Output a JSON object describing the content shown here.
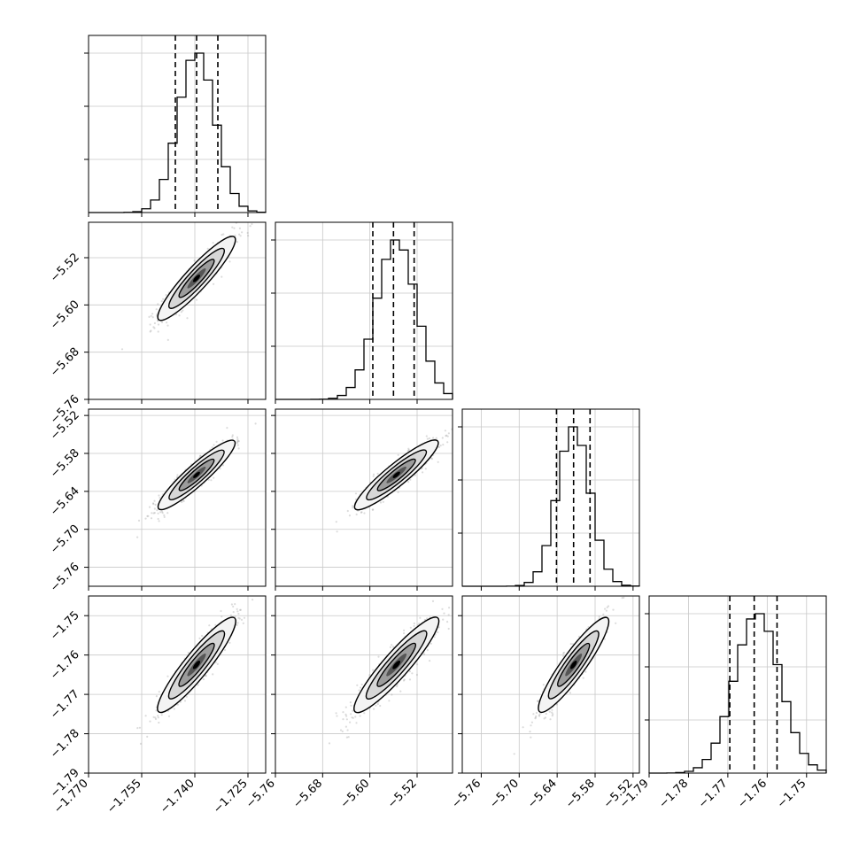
{
  "chart_data": {
    "type": "corner",
    "params": [
      {
        "lim": [
          -1.77,
          -1.72
        ],
        "ticks": [
          "-1.770",
          "-1.755",
          "-1.740",
          "-1.725"
        ],
        "tickValues": [
          -1.77,
          -1.755,
          -1.74,
          -1.725
        ],
        "mean": -1.7395,
        "sd": 0.0052,
        "quantiles": [
          -1.7455,
          -1.7395,
          -1.7335
        ]
      },
      {
        "lim": [
          -5.76,
          -5.46
        ],
        "ticks": [
          "-5.76",
          "-5.68",
          "-5.60",
          "-5.52"
        ],
        "tickValues": [
          -5.76,
          -5.68,
          -5.6,
          -5.52
        ],
        "mean": -5.555,
        "sd": 0.034,
        "quantiles": [
          -5.595,
          -5.56,
          -5.525
        ]
      },
      {
        "lim": [
          -5.79,
          -5.51
        ],
        "ticks": [
          "-5.76",
          "-5.70",
          "-5.64",
          "-5.58",
          "-5.52"
        ],
        "tickValues": [
          -5.76,
          -5.7,
          -5.64,
          -5.58,
          -5.52
        ],
        "mean": -5.614,
        "sd": 0.026,
        "quantiles": [
          -5.641,
          -5.614,
          -5.588
        ]
      },
      {
        "lim": [
          -1.79,
          -1.745
        ],
        "ticks": [
          "-1.79",
          "-1.78",
          "-1.77",
          "-1.76",
          "-1.75"
        ],
        "tickValues": [
          -1.79,
          -1.78,
          -1.77,
          -1.76,
          -1.75
        ],
        "mean": -1.7625,
        "sd": 0.0058,
        "quantiles": [
          -1.7695,
          -1.7633,
          -1.7575
        ]
      }
    ],
    "correlation": 0.92,
    "grid": true,
    "histogram_bins": 20
  }
}
